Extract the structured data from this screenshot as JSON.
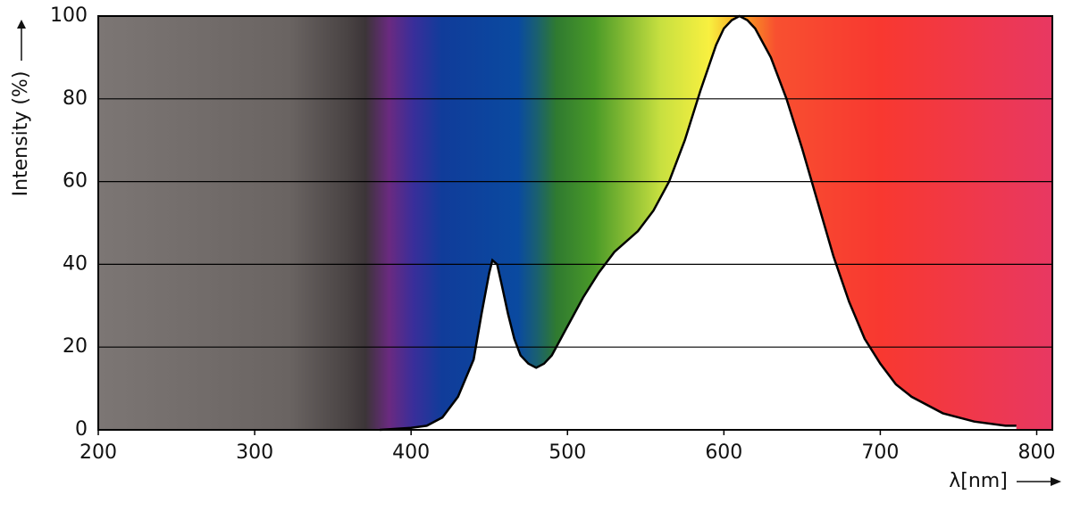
{
  "chart_data": {
    "type": "area",
    "y_label": "Intensity (%)",
    "x_label": "λ[nm]",
    "x": [
      380,
      400,
      410,
      420,
      430,
      440,
      445,
      450,
      452,
      455,
      458,
      462,
      466,
      470,
      475,
      480,
      485,
      490,
      500,
      510,
      520,
      530,
      545,
      555,
      565,
      575,
      585,
      595,
      600,
      605,
      610,
      615,
      620,
      630,
      640,
      650,
      660,
      670,
      680,
      690,
      700,
      710,
      720,
      740,
      760,
      780,
      787
    ],
    "values": [
      0,
      0.5,
      1,
      3,
      8,
      17,
      28,
      38,
      41,
      40,
      35,
      28,
      22,
      18,
      16,
      15,
      16,
      18,
      25,
      32,
      38,
      43,
      48,
      53,
      60,
      70,
      82,
      93,
      97,
      99,
      100,
      99,
      97,
      90,
      80,
      68,
      55,
      42,
      31,
      22,
      16,
      11,
      8,
      4,
      2,
      1,
      1
    ],
    "line_color": "#000000",
    "area_color": "#ffffff",
    "xlim": [
      200,
      810
    ],
    "ylim": [
      0,
      100
    ],
    "xticks": [
      200,
      300,
      400,
      500,
      600,
      700,
      800
    ],
    "yticks": [
      0,
      20,
      40,
      60,
      80,
      100
    ],
    "grid": true
  }
}
